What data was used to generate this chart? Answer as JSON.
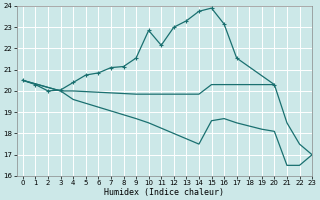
{
  "xlabel": "Humidex (Indice chaleur)",
  "xlim": [
    -0.5,
    23
  ],
  "ylim": [
    16,
    24
  ],
  "yticks": [
    16,
    17,
    18,
    19,
    20,
    21,
    22,
    23,
    24
  ],
  "xticks": [
    0,
    1,
    2,
    3,
    4,
    5,
    6,
    7,
    8,
    9,
    10,
    11,
    12,
    13,
    14,
    15,
    16,
    17,
    18,
    19,
    20,
    21,
    22,
    23
  ],
  "bg_color": "#cce8e8",
  "grid_color": "#b0d8d8",
  "line_color": "#1a7070",
  "series": [
    {
      "x": [
        0,
        1,
        2,
        3,
        4,
        5,
        6,
        7,
        8,
        9,
        10,
        11,
        12,
        13,
        14,
        15,
        16,
        17,
        20
      ],
      "y": [
        20.5,
        20.3,
        20.0,
        20.05,
        20.4,
        20.75,
        20.85,
        21.1,
        21.15,
        21.55,
        22.85,
        22.15,
        23.0,
        23.3,
        23.75,
        23.9,
        23.15,
        21.55,
        20.3
      ],
      "has_markers": true
    },
    {
      "x": [
        0,
        3,
        4,
        9,
        10,
        14,
        15,
        16,
        17,
        18,
        19,
        20,
        21,
        22,
        23
      ],
      "y": [
        20.5,
        20.0,
        20.0,
        19.85,
        19.85,
        19.85,
        20.3,
        20.3,
        20.3,
        20.3,
        20.3,
        20.3,
        18.5,
        17.5,
        17.0
      ],
      "has_markers": false
    },
    {
      "x": [
        0,
        3,
        4,
        9,
        10,
        14,
        15,
        16,
        17,
        18,
        19,
        20,
        21,
        22,
        23
      ],
      "y": [
        20.5,
        20.0,
        19.6,
        18.7,
        18.5,
        17.5,
        18.6,
        18.7,
        18.5,
        18.35,
        18.2,
        18.1,
        16.5,
        16.5,
        17.0
      ],
      "has_markers": false
    }
  ]
}
